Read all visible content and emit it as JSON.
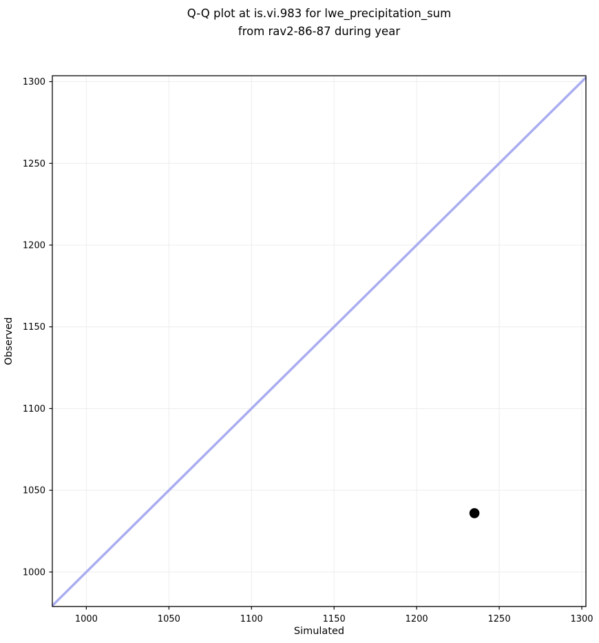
{
  "chart_data": {
    "type": "scatter",
    "subtype": "qq-plot",
    "title_lines": [
      "Q-Q plot at is.vi.983 for lwe_precipitation_sum",
      "from rav2-86-87 during year"
    ],
    "xlabel": "Simulated",
    "ylabel": "Observed",
    "xlim": [
      979.4,
      1302.5
    ],
    "ylim": [
      978.9,
      1303.6
    ],
    "xticks": [
      1000,
      1050,
      1100,
      1150,
      1200,
      1250,
      1300
    ],
    "yticks": [
      1000,
      1050,
      1100,
      1150,
      1200,
      1250,
      1300
    ],
    "grid": true,
    "legend": false,
    "points": [
      {
        "simulated": 1235,
        "observed": 1036
      }
    ],
    "identity_line": {
      "from": 979.4,
      "to": 1302.5
    },
    "colors": {
      "identity_line": "#a9acf0",
      "point": "#000000",
      "grid": "#ececec",
      "spine": "#000000",
      "background": "#ffffff",
      "text": "#000000"
    },
    "style": {
      "identity_line_width": 3.5,
      "point_radius": 7.3
    }
  }
}
